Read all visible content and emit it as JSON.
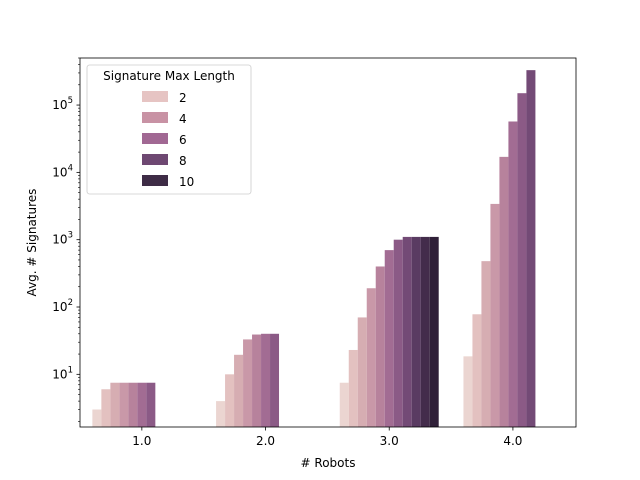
{
  "chart_data": {
    "type": "bar",
    "xlabel": "# Robots",
    "ylabel": "Avg. # Signatures",
    "yscale": "log",
    "ylim": [
      1.65,
      500000
    ],
    "categories": [
      "1.0",
      "2.0",
      "3.0",
      "4.0"
    ],
    "y_ticks": [
      {
        "value": 10,
        "base": "10",
        "exp": "1"
      },
      {
        "value": 100,
        "base": "10",
        "exp": "2"
      },
      {
        "value": 1000,
        "base": "10",
        "exp": "3"
      },
      {
        "value": 10000,
        "base": "10",
        "exp": "4"
      },
      {
        "value": 100000,
        "base": "10",
        "exp": "5"
      }
    ],
    "legend": {
      "title": "Signature Max Length",
      "placement": "upper-left",
      "entries": [
        "2",
        "4",
        "6",
        "8",
        "10"
      ],
      "colors": [
        "#e6c4c3",
        "#c892a4",
        "#a16893",
        "#6e4872",
        "#3e2c46"
      ]
    },
    "series": [
      {
        "length": 1,
        "color": "#ebd5d1",
        "values": [
          3,
          4,
          7.5,
          18.5
        ]
      },
      {
        "length": 2,
        "color": "#e3c1c0",
        "values": [
          6,
          10,
          23,
          78
        ]
      },
      {
        "length": 3,
        "color": "#d6adb2",
        "values": [
          7.5,
          19.5,
          70,
          480
        ]
      },
      {
        "length": 4,
        "color": "#c998a8",
        "values": [
          7.5,
          33,
          190,
          3400
        ]
      },
      {
        "length": 5,
        "color": "#b7829c",
        "values": [
          7.5,
          39,
          400,
          17000
        ]
      },
      {
        "length": 6,
        "color": "#a26c93",
        "values": [
          7.5,
          40,
          700,
          57000
        ]
      },
      {
        "length": 7,
        "color": "#8b5a86",
        "values": [
          7.5,
          40,
          1000,
          150000
        ]
      },
      {
        "length": 8,
        "color": "#734a76",
        "values": [
          null,
          null,
          1100,
          330000
        ]
      },
      {
        "length": 9,
        "color": "#5a3b62",
        "values": [
          null,
          null,
          1100,
          null
        ]
      },
      {
        "length": 10,
        "color": "#432c4b",
        "values": [
          null,
          null,
          1100,
          null
        ]
      },
      {
        "length": 11,
        "color": "#2f1f38",
        "values": [
          null,
          null,
          1100,
          null
        ]
      }
    ]
  }
}
